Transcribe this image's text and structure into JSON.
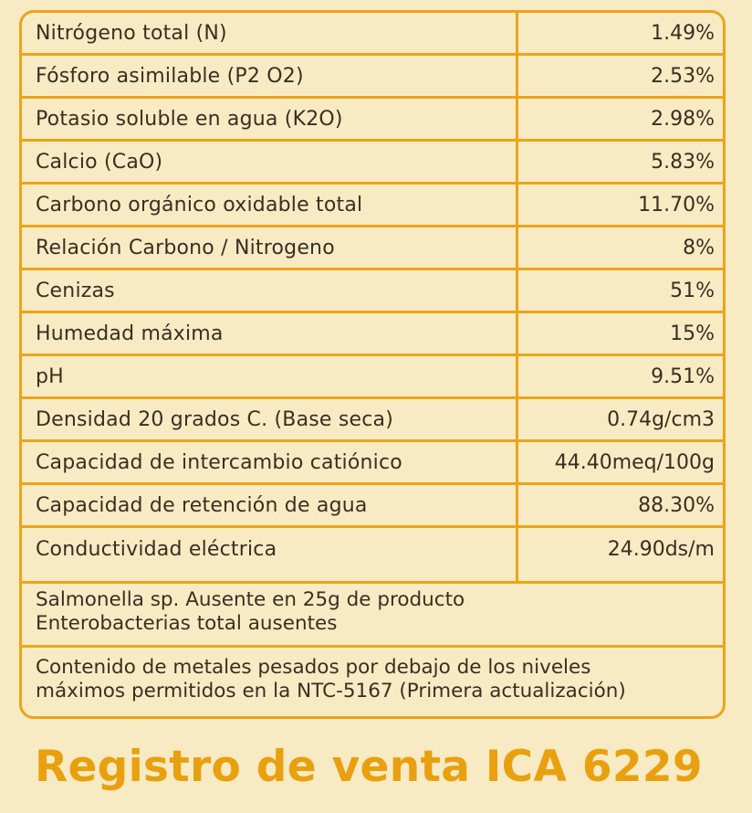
{
  "rows": [
    {
      "label": "Nitrógeno total (N)",
      "value": "1.49%"
    },
    {
      "label": "Fósforo asimilable (P2 O2)",
      "value": "2.53%"
    },
    {
      "label": "Potasio soluble en agua (K2O)",
      "value": "2.98%"
    },
    {
      "label": "Calcio (CaO)",
      "value": "5.83%"
    },
    {
      "label": "Carbono orgánico oxidable total",
      "value": "11.70%"
    },
    {
      "label": "Relación Carbono / Nitrogeno",
      "value": "8%"
    },
    {
      "label": "Cenizas",
      "value": "51%"
    },
    {
      "label": "Humedad máxima",
      "value": "15%"
    },
    {
      "label": "pH",
      "value": "9.51%"
    },
    {
      "label": "Densidad 20 grados C. (Base seca)",
      "value": "0.74g/cm3"
    },
    {
      "label": "Capacidad de intercambio catiónico",
      "value": "44.40meq/100g"
    },
    {
      "label": "Capacidad de retención de agua",
      "value": "88.30%"
    },
    {
      "label": "Conductividad eléctrica",
      "value": "24.90ds/m"
    }
  ],
  "notes": [
    {
      "lines": [
        "Salmonella sp. Ausente en 25g de producto",
        "Enterobacterias total ausentes"
      ]
    },
    {
      "lines": [
        "Contenido de metales pesados por debajo de los niveles",
        "máximos permitidos en la NTC-5167 (Primera actualización)"
      ]
    }
  ],
  "registro": "Registro de venta ICA 6229",
  "colors": {
    "background": "#f8ebc4",
    "border": "#eca418",
    "accent_text": "#e9a00f",
    "body_text": "#3a2e22"
  }
}
